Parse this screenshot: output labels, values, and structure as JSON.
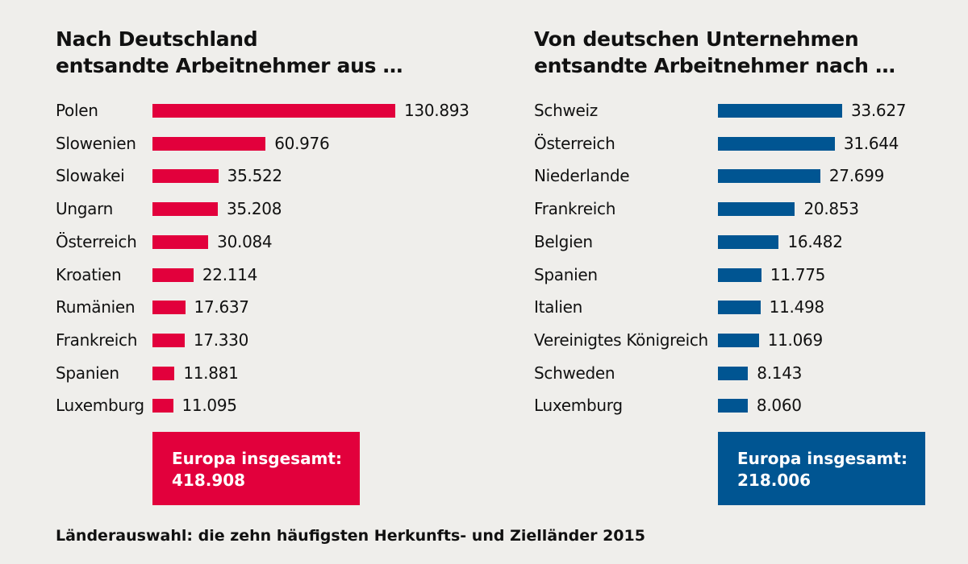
{
  "chart_data": [
    {
      "type": "bar",
      "orientation": "horizontal",
      "title": "Nach Deutschland entsandte Arbeitnehmer aus …",
      "title_lines": [
        "Nach Deutschland",
        "entsandte Arbeitnehmer aus …"
      ],
      "categories": [
        "Polen",
        "Slowenien",
        "Slowakei",
        "Ungarn",
        "Österreich",
        "Kroatien",
        "Rumänien",
        "Frankreich",
        "Spanien",
        "Luxemburg"
      ],
      "values": [
        130893,
        60976,
        35522,
        35208,
        30084,
        22114,
        17637,
        17330,
        11881,
        11095
      ],
      "labels": [
        "130.893",
        "60.976",
        "35.522",
        "35.208",
        "30.084",
        "22.114",
        "17.637",
        "17.330",
        "11.881",
        "11.095"
      ],
      "color": "#e2003c",
      "total_label": "Europa insgesamt:",
      "total_value": "418.908"
    },
    {
      "type": "bar",
      "orientation": "horizontal",
      "title": "Von deutschen Unternehmen entsandte Arbeitnehmer nach …",
      "title_lines": [
        "Von deutschen Unternehmen",
        "entsandte Arbeitnehmer nach …"
      ],
      "categories": [
        "Schweiz",
        "Österreich",
        "Niederlande",
        "Frankreich",
        "Belgien",
        "Spanien",
        "Italien",
        "Vereinigtes Königreich",
        "Schweden",
        "Luxemburg"
      ],
      "values": [
        33627,
        31644,
        27699,
        20853,
        16482,
        11775,
        11498,
        11069,
        8143,
        8060
      ],
      "labels": [
        "33.627",
        "31.644",
        "27.699",
        "20.853",
        "16.482",
        "11.775",
        "11.498",
        "11.069",
        "8.143",
        "8.060"
      ],
      "color": "#005592",
      "total_label": "Europa insgesamt:",
      "total_value": "218.006"
    }
  ],
  "footnote": "Länderauswahl: die zehn häufigsten Herkunfts- und Zielländer 2015"
}
